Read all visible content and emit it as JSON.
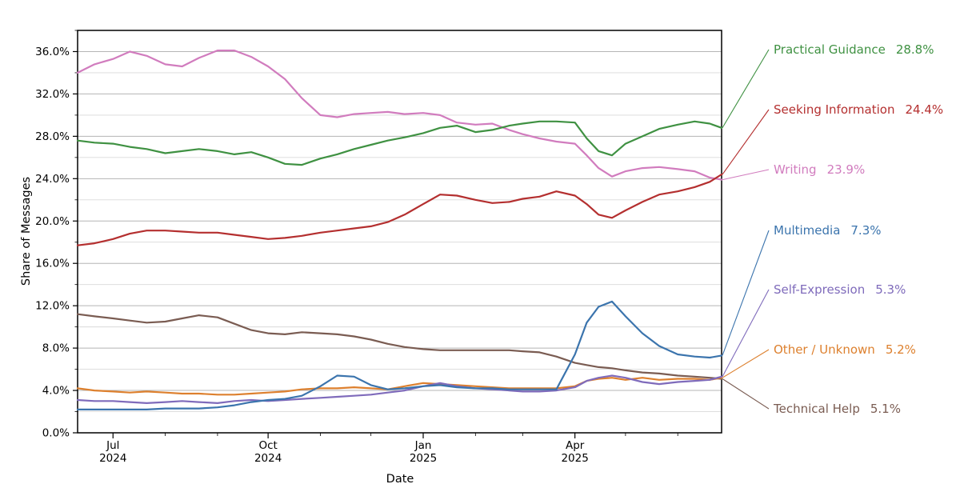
{
  "chart_data": {
    "type": "line",
    "title": "",
    "xlabel": "Date",
    "ylabel": "Share of Messages",
    "ylim": [
      0,
      38
    ],
    "y_major_tick_step": 4,
    "y_minor_grid_step": 2,
    "y_tick_labels": [
      "0.0%",
      "4.0%",
      "8.0%",
      "12.0%",
      "16.0%",
      "20.0%",
      "24.0%",
      "28.0%",
      "32.0%",
      "36.0%"
    ],
    "grid": true,
    "legend_position": "right-of-plot",
    "x_range": [
      "2024-06-10",
      "2025-06-27"
    ],
    "x_major_ticks": [
      {
        "date": "2024-07-01",
        "month": "Jul",
        "year": "2024"
      },
      {
        "date": "2024-10-01",
        "month": "Oct",
        "year": "2024"
      },
      {
        "date": "2025-01-01",
        "month": "Jan",
        "year": "2025"
      },
      {
        "date": "2025-04-01",
        "month": "Apr",
        "year": "2025"
      }
    ],
    "x_minor_ticks": [
      "2024-08-01",
      "2024-09-01",
      "2024-11-01",
      "2024-12-01",
      "2025-02-01",
      "2025-03-01",
      "2025-05-01",
      "2025-06-01"
    ],
    "dates": [
      "2024-06-10",
      "2024-06-20",
      "2024-07-01",
      "2024-07-11",
      "2024-07-21",
      "2024-08-01",
      "2024-08-11",
      "2024-08-21",
      "2024-09-01",
      "2024-09-11",
      "2024-09-21",
      "2024-10-01",
      "2024-10-11",
      "2024-10-21",
      "2024-11-01",
      "2024-11-11",
      "2024-11-21",
      "2024-12-01",
      "2024-12-11",
      "2024-12-21",
      "2025-01-01",
      "2025-01-11",
      "2025-01-21",
      "2025-02-01",
      "2025-02-11",
      "2025-02-21",
      "2025-03-01",
      "2025-03-11",
      "2025-03-21",
      "2025-04-01",
      "2025-04-08",
      "2025-04-15",
      "2025-04-23",
      "2025-05-01",
      "2025-05-11",
      "2025-05-21",
      "2025-06-01",
      "2025-06-11",
      "2025-06-20",
      "2025-06-27"
    ],
    "series": [
      {
        "name": "Writing",
        "color": "#d17cbe",
        "values": [
          34.0,
          34.8,
          35.3,
          36.0,
          35.6,
          34.8,
          34.6,
          35.4,
          36.1,
          36.1,
          35.5,
          34.6,
          33.4,
          31.6,
          30.0,
          29.8,
          30.1,
          30.2,
          30.3,
          30.1,
          30.2,
          30.0,
          29.3,
          29.1,
          29.2,
          28.6,
          28.2,
          27.8,
          27.5,
          27.3,
          26.2,
          25.0,
          24.2,
          24.7,
          25.0,
          25.1,
          24.9,
          24.7,
          24.1,
          23.9
        ]
      },
      {
        "name": "Practical Guidance",
        "color": "#3f9142",
        "values": [
          27.6,
          27.4,
          27.3,
          27.0,
          26.8,
          26.4,
          26.6,
          26.8,
          26.6,
          26.3,
          26.5,
          26.0,
          25.4,
          25.3,
          25.9,
          26.3,
          26.8,
          27.2,
          27.6,
          27.9,
          28.3,
          28.8,
          29.0,
          28.4,
          28.6,
          29.0,
          29.2,
          29.4,
          29.4,
          29.3,
          27.8,
          26.6,
          26.2,
          27.3,
          28.0,
          28.7,
          29.1,
          29.4,
          29.2,
          28.8
        ]
      },
      {
        "name": "Seeking Information",
        "color": "#b42f2f",
        "values": [
          17.7,
          17.9,
          18.3,
          18.8,
          19.1,
          19.1,
          19.0,
          18.9,
          18.9,
          18.7,
          18.5,
          18.3,
          18.4,
          18.6,
          18.9,
          19.1,
          19.3,
          19.5,
          19.9,
          20.6,
          21.6,
          22.5,
          22.4,
          22.0,
          21.7,
          21.8,
          22.1,
          22.3,
          22.8,
          22.4,
          21.6,
          20.6,
          20.3,
          21.0,
          21.8,
          22.5,
          22.8,
          23.2,
          23.7,
          24.4
        ]
      },
      {
        "name": "Technical Help",
        "color": "#7a5c52",
        "values": [
          11.2,
          11.0,
          10.8,
          10.6,
          10.4,
          10.5,
          10.8,
          11.1,
          10.9,
          10.3,
          9.7,
          9.4,
          9.3,
          9.5,
          9.4,
          9.3,
          9.1,
          8.8,
          8.4,
          8.1,
          7.9,
          7.8,
          7.8,
          7.8,
          7.8,
          7.8,
          7.7,
          7.6,
          7.2,
          6.6,
          6.4,
          6.2,
          6.1,
          5.9,
          5.7,
          5.6,
          5.4,
          5.3,
          5.2,
          5.1
        ]
      },
      {
        "name": "Other / Unknown",
        "color": "#dd802e",
        "values": [
          4.2,
          4.0,
          3.9,
          3.8,
          3.9,
          3.8,
          3.7,
          3.7,
          3.6,
          3.6,
          3.7,
          3.8,
          3.9,
          4.1,
          4.2,
          4.2,
          4.3,
          4.2,
          4.1,
          4.4,
          4.7,
          4.6,
          4.5,
          4.4,
          4.3,
          4.2,
          4.2,
          4.2,
          4.2,
          4.4,
          4.9,
          5.1,
          5.2,
          5.0,
          5.2,
          5.0,
          5.1,
          5.1,
          5.0,
          5.2
        ]
      },
      {
        "name": "Self-Expression",
        "color": "#7f6bbb",
        "values": [
          3.1,
          3.0,
          3.0,
          2.9,
          2.8,
          2.9,
          3.0,
          2.9,
          2.8,
          3.0,
          3.1,
          3.0,
          3.1,
          3.2,
          3.3,
          3.4,
          3.5,
          3.6,
          3.8,
          4.0,
          4.4,
          4.7,
          4.4,
          4.2,
          4.1,
          4.0,
          3.9,
          3.9,
          4.0,
          4.3,
          4.9,
          5.2,
          5.4,
          5.2,
          4.8,
          4.6,
          4.8,
          4.9,
          5.0,
          5.3
        ]
      },
      {
        "name": "Multimedia",
        "color": "#3b74ad",
        "values": [
          2.2,
          2.2,
          2.2,
          2.2,
          2.2,
          2.3,
          2.3,
          2.3,
          2.4,
          2.6,
          2.9,
          3.1,
          3.2,
          3.5,
          4.4,
          5.4,
          5.3,
          4.5,
          4.1,
          4.2,
          4.4,
          4.5,
          4.3,
          4.2,
          4.2,
          4.1,
          4.1,
          4.1,
          4.1,
          7.4,
          10.4,
          11.9,
          12.4,
          11.0,
          9.4,
          8.2,
          7.4,
          7.2,
          7.1,
          7.3
        ]
      }
    ],
    "legend": [
      {
        "label": "Practical Guidance",
        "value": "28.8%",
        "series": "Practical Guidance"
      },
      {
        "label": "Seeking Information",
        "value": "24.4%",
        "series": "Seeking Information"
      },
      {
        "label": "Writing",
        "value": "23.9%",
        "series": "Writing"
      },
      {
        "label": "Multimedia",
        "value": "7.3%",
        "series": "Multimedia"
      },
      {
        "label": "Self-Expression",
        "value": "5.3%",
        "series": "Self-Expression"
      },
      {
        "label": "Other / Unknown",
        "value": "5.2%",
        "series": "Other / Unknown"
      },
      {
        "label": "Technical Help",
        "value": "5.1%",
        "series": "Technical Help"
      }
    ]
  }
}
